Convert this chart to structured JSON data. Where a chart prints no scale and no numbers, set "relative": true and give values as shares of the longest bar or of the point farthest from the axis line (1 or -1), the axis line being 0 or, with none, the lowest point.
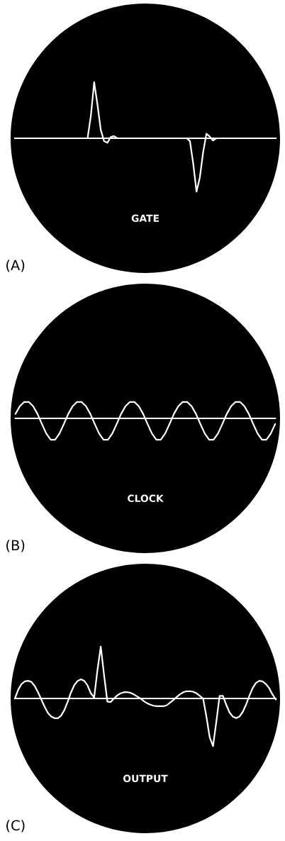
{
  "chart_data": [
    {
      "type": "line",
      "title": "(A)",
      "annotations": [
        "GATE"
      ],
      "relative": true,
      "grid": false,
      "legend": false,
      "categories": [
        null,
        null,
        null,
        null,
        null,
        null,
        null,
        null,
        null,
        null,
        null,
        null,
        null,
        null,
        null,
        null,
        null,
        null,
        null,
        null,
        null,
        null,
        null,
        null,
        null,
        null,
        null,
        null,
        null,
        null,
        null,
        null,
        null,
        null,
        null,
        null,
        null,
        null,
        null,
        null,
        null,
        null,
        null,
        null,
        null,
        null,
        null,
        null,
        null,
        null,
        null,
        null,
        null,
        null,
        null,
        null,
        null,
        null,
        null,
        null,
        null,
        null,
        null,
        null,
        null,
        null,
        null,
        null,
        null,
        null,
        null,
        null,
        null,
        null,
        null,
        null,
        null,
        null,
        null,
        null
      ],
      "series": [
        {
          "color": "#ffffff",
          "values": [
            0,
            0,
            0,
            0,
            0,
            0,
            0,
            0,
            0,
            0,
            0,
            0,
            0,
            0,
            0,
            0,
            0,
            0,
            0,
            0,
            0,
            0,
            0,
            0.4,
            1,
            0.6,
            0.15,
            -0.05,
            -0.08,
            0.02,
            0.04,
            0,
            0,
            0,
            0,
            0,
            0,
            0,
            0,
            0,
            0,
            0,
            0,
            0,
            0,
            0,
            0,
            0,
            0,
            0,
            0,
            0,
            0,
            -0.05,
            -0.45,
            -0.95,
            -0.7,
            -0.25,
            0.08,
            0.03,
            -0.04,
            0,
            0,
            0,
            0,
            0,
            0,
            0,
            0,
            0,
            0,
            0,
            0,
            0,
            0,
            0,
            0,
            0,
            0,
            0
          ]
        }
      ]
    },
    {
      "type": "line",
      "title": "(B)",
      "annotations": [
        "CLOCK"
      ],
      "relative": true,
      "grid": false,
      "legend": false,
      "categories": [
        null,
        null,
        null,
        null,
        null,
        null,
        null,
        null,
        null,
        null,
        null,
        null,
        null,
        null,
        null,
        null,
        null,
        null,
        null,
        null,
        null,
        null,
        null,
        null,
        null,
        null,
        null,
        null,
        null,
        null,
        null,
        null,
        null,
        null,
        null,
        null,
        null,
        null,
        null,
        null,
        null,
        null,
        null,
        null,
        null,
        null,
        null,
        null,
        null,
        null,
        null,
        null,
        null,
        null,
        null,
        null,
        null,
        null,
        null,
        null
      ],
      "series": [
        {
          "color": "#ffffff",
          "values": [
            0.21,
            0.57,
            0.77,
            0.77,
            0.57,
            0.21,
            -0.26,
            -0.71,
            -1,
            -1,
            -0.71,
            -0.26,
            0.21,
            0.57,
            0.77,
            0.77,
            0.57,
            0.21,
            -0.26,
            -0.71,
            -1,
            -1,
            -0.71,
            -0.26,
            0.21,
            0.57,
            0.77,
            0.77,
            0.57,
            0.21,
            -0.26,
            -0.71,
            -1,
            -1,
            -0.71,
            -0.26,
            0.21,
            0.57,
            0.77,
            0.77,
            0.57,
            0.21,
            -0.26,
            -0.71,
            -1,
            -1,
            -0.71,
            -0.26,
            0.21,
            0.57,
            0.77,
            0.77,
            0.57,
            0.21,
            -0.26,
            -0.71,
            -1,
            -1,
            -0.71,
            -0.26
          ]
        }
      ]
    },
    {
      "type": "line",
      "title": "(C)",
      "annotations": [
        "OUTPUT"
      ],
      "relative": true,
      "grid": false,
      "legend": false,
      "categories": [
        null,
        null,
        null,
        null,
        null,
        null,
        null,
        null,
        null,
        null,
        null,
        null,
        null,
        null,
        null,
        null,
        null,
        null,
        null,
        null,
        null,
        null,
        null,
        null,
        null,
        null,
        null,
        null,
        null,
        null,
        null,
        null,
        null,
        null,
        null,
        null,
        null,
        null,
        null,
        null,
        null,
        null,
        null,
        null,
        null,
        null,
        null,
        null,
        null,
        null,
        null,
        null,
        null,
        null,
        null,
        null,
        null,
        null,
        null,
        null,
        null,
        null,
        null,
        null,
        null,
        null,
        null,
        null,
        null,
        null,
        null,
        null,
        null,
        null,
        null,
        null,
        null,
        null,
        null,
        null
      ],
      "series": [
        {
          "color": "#ffffff",
          "values": [
            0,
            0.17,
            0.28,
            0.33,
            0.34,
            0.32,
            0.24,
            0.12,
            -0.02,
            -0.16,
            -0.28,
            -0.35,
            -0.38,
            -0.38,
            -0.33,
            -0.22,
            -0.06,
            0.12,
            0.26,
            0.34,
            0.37,
            0.34,
            0.25,
            0.1,
            0.02,
            0.55,
            1,
            0.45,
            -0.06,
            -0.07,
            0,
            0.06,
            0.1,
            0.12,
            0.12,
            0.11,
            0.08,
            0.04,
            0,
            -0.05,
            -0.09,
            -0.12,
            -0.14,
            -0.15,
            -0.15,
            -0.15,
            -0.13,
            -0.08,
            -0.03,
            0.03,
            0.08,
            0.12,
            0.14,
            0.14,
            0.13,
            0.1,
            0.05,
            0,
            -0.35,
            -0.75,
            -0.92,
            -0.45,
            0.05,
            0.05,
            -0.12,
            -0.27,
            -0.35,
            -0.38,
            -0.35,
            -0.26,
            -0.12,
            0.05,
            0.2,
            0.3,
            0.34,
            0.33,
            0.28,
            0.2,
            0.08,
            -0.02
          ]
        }
      ]
    }
  ]
}
